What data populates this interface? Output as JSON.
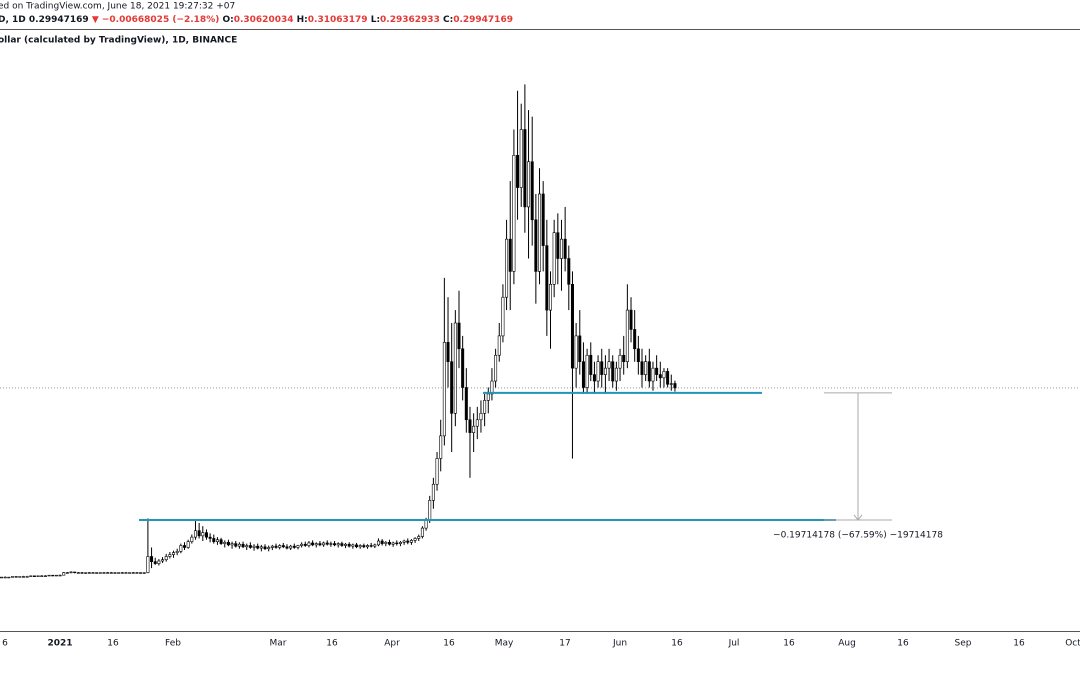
{
  "chart_data": {
    "type": "candlestick",
    "header": {
      "line1": "ed on TradingView.com, June 18, 2021 19:27:32 +07",
      "symbol": "D, 1D",
      "change": "▼ −0.00668025 (−2.18%)",
      "o_label": "O:",
      "h_label": "H:",
      "l_label": "L:",
      "c_label": "C:"
    },
    "subtitle": "ollar (calculated by TradingView), 1D, BINANCE",
    "candle_colors": {
      "up": "#ffffff",
      "down": "#000000",
      "border": "#000000"
    },
    "level_color": "#2196b6",
    "levels": [
      0.2917,
      0.0946
    ],
    "measure_label": "−0.19714178 (−67.59%) −19714178",
    "xtick_labels": [
      "6",
      "2021",
      "16",
      "Feb",
      "Mar",
      "16",
      "Apr",
      "16",
      "May",
      "17",
      "Jun",
      "16",
      "Jul",
      "16",
      "Aug",
      "16",
      "Sep",
      "16",
      "Oct"
    ],
    "ohlc": [
      [
        0.005,
        0.006,
        0.005,
        0.006
      ],
      [
        0.006,
        0.007,
        0.005,
        0.006
      ],
      [
        0.006,
        0.006,
        0.005,
        0.006
      ],
      [
        0.006,
        0.007,
        0.006,
        0.007
      ],
      [
        0.007,
        0.007,
        0.006,
        0.006
      ],
      [
        0.006,
        0.007,
        0.006,
        0.007
      ],
      [
        0.007,
        0.008,
        0.006,
        0.007
      ],
      [
        0.007,
        0.008,
        0.007,
        0.007
      ],
      [
        0.007,
        0.008,
        0.007,
        0.008
      ],
      [
        0.008,
        0.008,
        0.007,
        0.007
      ],
      [
        0.007,
        0.008,
        0.007,
        0.008
      ],
      [
        0.008,
        0.009,
        0.007,
        0.008
      ],
      [
        0.008,
        0.009,
        0.008,
        0.008
      ],
      [
        0.008,
        0.009,
        0.008,
        0.009
      ],
      [
        0.009,
        0.009,
        0.008,
        0.008
      ],
      [
        0.008,
        0.009,
        0.008,
        0.009
      ],
      [
        0.009,
        0.01,
        0.008,
        0.009
      ],
      [
        0.009,
        0.014,
        0.009,
        0.013
      ],
      [
        0.013,
        0.014,
        0.012,
        0.013
      ],
      [
        0.013,
        0.015,
        0.012,
        0.014
      ],
      [
        0.014,
        0.014,
        0.012,
        0.013
      ],
      [
        0.013,
        0.014,
        0.012,
        0.013
      ],
      [
        0.013,
        0.014,
        0.012,
        0.012
      ],
      [
        0.012,
        0.013,
        0.011,
        0.013
      ],
      [
        0.013,
        0.014,
        0.012,
        0.013
      ],
      [
        0.013,
        0.014,
        0.012,
        0.013
      ],
      [
        0.013,
        0.013,
        0.012,
        0.012
      ],
      [
        0.012,
        0.013,
        0.012,
        0.013
      ],
      [
        0.013,
        0.014,
        0.012,
        0.013
      ],
      [
        0.013,
        0.014,
        0.013,
        0.013
      ],
      [
        0.013,
        0.014,
        0.012,
        0.013
      ],
      [
        0.013,
        0.013,
        0.012,
        0.012
      ],
      [
        0.012,
        0.013,
        0.012,
        0.013
      ],
      [
        0.013,
        0.014,
        0.012,
        0.013
      ],
      [
        0.013,
        0.014,
        0.013,
        0.013
      ],
      [
        0.013,
        0.013,
        0.012,
        0.013
      ],
      [
        0.013,
        0.014,
        0.012,
        0.013
      ],
      [
        0.013,
        0.014,
        0.012,
        0.013
      ],
      [
        0.013,
        0.013,
        0.012,
        0.012
      ],
      [
        0.012,
        0.013,
        0.011,
        0.013
      ],
      [
        0.013,
        0.097,
        0.012,
        0.038
      ],
      [
        0.038,
        0.052,
        0.02,
        0.03
      ],
      [
        0.03,
        0.036,
        0.025,
        0.027
      ],
      [
        0.027,
        0.034,
        0.024,
        0.031
      ],
      [
        0.031,
        0.037,
        0.028,
        0.033
      ],
      [
        0.033,
        0.042,
        0.03,
        0.038
      ],
      [
        0.038,
        0.045,
        0.035,
        0.041
      ],
      [
        0.041,
        0.047,
        0.036,
        0.044
      ],
      [
        0.044,
        0.05,
        0.04,
        0.046
      ],
      [
        0.046,
        0.058,
        0.043,
        0.055
      ],
      [
        0.055,
        0.06,
        0.048,
        0.052
      ],
      [
        0.052,
        0.064,
        0.05,
        0.061
      ],
      [
        0.061,
        0.072,
        0.058,
        0.068
      ],
      [
        0.068,
        0.095,
        0.064,
        0.078
      ],
      [
        0.078,
        0.09,
        0.066,
        0.07
      ],
      [
        0.07,
        0.085,
        0.062,
        0.075
      ],
      [
        0.075,
        0.08,
        0.064,
        0.068
      ],
      [
        0.068,
        0.074,
        0.06,
        0.066
      ],
      [
        0.066,
        0.072,
        0.058,
        0.061
      ],
      [
        0.061,
        0.068,
        0.056,
        0.064
      ],
      [
        0.064,
        0.067,
        0.056,
        0.058
      ],
      [
        0.058,
        0.063,
        0.052,
        0.06
      ],
      [
        0.06,
        0.064,
        0.054,
        0.056
      ],
      [
        0.056,
        0.061,
        0.05,
        0.058
      ],
      [
        0.058,
        0.062,
        0.052,
        0.054
      ],
      [
        0.054,
        0.06,
        0.05,
        0.057
      ],
      [
        0.057,
        0.061,
        0.051,
        0.053
      ],
      [
        0.053,
        0.058,
        0.048,
        0.055
      ],
      [
        0.055,
        0.06,
        0.05,
        0.052
      ],
      [
        0.052,
        0.057,
        0.047,
        0.054
      ],
      [
        0.054,
        0.058,
        0.049,
        0.051
      ],
      [
        0.051,
        0.056,
        0.046,
        0.053
      ],
      [
        0.053,
        0.057,
        0.048,
        0.05
      ],
      [
        0.05,
        0.055,
        0.046,
        0.052
      ],
      [
        0.052,
        0.056,
        0.048,
        0.054
      ],
      [
        0.054,
        0.058,
        0.05,
        0.052
      ],
      [
        0.052,
        0.057,
        0.049,
        0.055
      ],
      [
        0.055,
        0.059,
        0.051,
        0.053
      ],
      [
        0.053,
        0.057,
        0.049,
        0.051
      ],
      [
        0.051,
        0.056,
        0.048,
        0.054
      ],
      [
        0.054,
        0.058,
        0.05,
        0.052
      ],
      [
        0.052,
        0.056,
        0.049,
        0.055
      ],
      [
        0.055,
        0.06,
        0.052,
        0.057
      ],
      [
        0.057,
        0.061,
        0.053,
        0.055
      ],
      [
        0.055,
        0.062,
        0.052,
        0.059
      ],
      [
        0.059,
        0.063,
        0.054,
        0.056
      ],
      [
        0.056,
        0.06,
        0.052,
        0.058
      ],
      [
        0.058,
        0.062,
        0.054,
        0.056
      ],
      [
        0.056,
        0.061,
        0.053,
        0.059
      ],
      [
        0.059,
        0.063,
        0.055,
        0.057
      ],
      [
        0.057,
        0.061,
        0.053,
        0.058
      ],
      [
        0.058,
        0.062,
        0.054,
        0.056
      ],
      [
        0.056,
        0.06,
        0.052,
        0.058
      ],
      [
        0.058,
        0.061,
        0.053,
        0.055
      ],
      [
        0.055,
        0.059,
        0.051,
        0.057
      ],
      [
        0.057,
        0.06,
        0.052,
        0.054
      ],
      [
        0.054,
        0.058,
        0.05,
        0.056
      ],
      [
        0.056,
        0.059,
        0.051,
        0.053
      ],
      [
        0.053,
        0.057,
        0.05,
        0.055
      ],
      [
        0.055,
        0.058,
        0.051,
        0.053
      ],
      [
        0.053,
        0.057,
        0.05,
        0.055
      ],
      [
        0.055,
        0.059,
        0.052,
        0.054
      ],
      [
        0.054,
        0.058,
        0.051,
        0.056
      ],
      [
        0.056,
        0.066,
        0.054,
        0.062
      ],
      [
        0.062,
        0.065,
        0.055,
        0.058
      ],
      [
        0.058,
        0.062,
        0.054,
        0.06
      ],
      [
        0.06,
        0.064,
        0.055,
        0.057
      ],
      [
        0.057,
        0.061,
        0.053,
        0.059
      ],
      [
        0.059,
        0.063,
        0.055,
        0.058
      ],
      [
        0.058,
        0.062,
        0.054,
        0.06
      ],
      [
        0.06,
        0.064,
        0.056,
        0.062
      ],
      [
        0.062,
        0.066,
        0.057,
        0.06
      ],
      [
        0.06,
        0.065,
        0.056,
        0.063
      ],
      [
        0.063,
        0.068,
        0.059,
        0.066
      ],
      [
        0.066,
        0.072,
        0.062,
        0.069
      ],
      [
        0.069,
        0.085,
        0.066,
        0.082
      ],
      [
        0.082,
        0.098,
        0.078,
        0.094
      ],
      [
        0.094,
        0.132,
        0.09,
        0.125
      ],
      [
        0.125,
        0.16,
        0.112,
        0.15
      ],
      [
        0.15,
        0.2,
        0.14,
        0.19
      ],
      [
        0.19,
        0.25,
        0.17,
        0.225
      ],
      [
        0.225,
        0.47,
        0.21,
        0.37
      ],
      [
        0.37,
        0.44,
        0.3,
        0.34
      ],
      [
        0.34,
        0.4,
        0.2,
        0.26
      ],
      [
        0.26,
        0.42,
        0.24,
        0.4
      ],
      [
        0.4,
        0.45,
        0.33,
        0.36
      ],
      [
        0.36,
        0.38,
        0.28,
        0.3
      ],
      [
        0.3,
        0.33,
        0.23,
        0.25
      ],
      [
        0.25,
        0.27,
        0.16,
        0.23
      ],
      [
        0.23,
        0.26,
        0.2,
        0.24
      ],
      [
        0.24,
        0.27,
        0.22,
        0.25
      ],
      [
        0.25,
        0.28,
        0.23,
        0.26
      ],
      [
        0.26,
        0.29,
        0.24,
        0.28
      ],
      [
        0.28,
        0.3,
        0.26,
        0.29
      ],
      [
        0.29,
        0.33,
        0.28,
        0.31
      ],
      [
        0.31,
        0.36,
        0.3,
        0.35
      ],
      [
        0.35,
        0.4,
        0.34,
        0.38
      ],
      [
        0.38,
        0.46,
        0.37,
        0.44
      ],
      [
        0.44,
        0.56,
        0.42,
        0.53
      ],
      [
        0.53,
        0.62,
        0.42,
        0.48
      ],
      [
        0.48,
        0.7,
        0.46,
        0.66
      ],
      [
        0.66,
        0.76,
        0.56,
        0.61
      ],
      [
        0.61,
        0.74,
        0.58,
        0.7
      ],
      [
        0.7,
        0.77,
        0.54,
        0.58
      ],
      [
        0.58,
        0.73,
        0.5,
        0.65
      ],
      [
        0.65,
        0.72,
        0.52,
        0.56
      ],
      [
        0.56,
        0.6,
        0.43,
        0.48
      ],
      [
        0.48,
        0.64,
        0.46,
        0.6
      ],
      [
        0.6,
        0.62,
        0.48,
        0.52
      ],
      [
        0.52,
        0.56,
        0.38,
        0.42
      ],
      [
        0.42,
        0.48,
        0.36,
        0.46
      ],
      [
        0.46,
        0.56,
        0.44,
        0.54
      ],
      [
        0.54,
        0.57,
        0.46,
        0.5
      ],
      [
        0.5,
        0.56,
        0.45,
        0.53
      ],
      [
        0.53,
        0.58,
        0.48,
        0.5
      ],
      [
        0.5,
        0.52,
        0.42,
        0.46
      ],
      [
        0.46,
        0.48,
        0.19,
        0.33
      ],
      [
        0.33,
        0.4,
        0.3,
        0.38
      ],
      [
        0.38,
        0.42,
        0.32,
        0.34
      ],
      [
        0.34,
        0.37,
        0.29,
        0.3
      ],
      [
        0.3,
        0.36,
        0.29,
        0.35
      ],
      [
        0.35,
        0.37,
        0.31,
        0.32
      ],
      [
        0.32,
        0.34,
        0.29,
        0.31
      ],
      [
        0.31,
        0.35,
        0.3,
        0.34
      ],
      [
        0.34,
        0.36,
        0.3,
        0.32
      ],
      [
        0.32,
        0.35,
        0.29,
        0.33
      ],
      [
        0.33,
        0.36,
        0.31,
        0.34
      ],
      [
        0.34,
        0.35,
        0.3,
        0.31
      ],
      [
        0.31,
        0.34,
        0.295,
        0.33
      ],
      [
        0.33,
        0.36,
        0.31,
        0.35
      ],
      [
        0.35,
        0.38,
        0.32,
        0.34
      ],
      [
        0.34,
        0.46,
        0.33,
        0.42
      ],
      [
        0.42,
        0.44,
        0.37,
        0.39
      ],
      [
        0.39,
        0.42,
        0.34,
        0.36
      ],
      [
        0.36,
        0.38,
        0.32,
        0.34
      ],
      [
        0.34,
        0.36,
        0.3,
        0.32
      ],
      [
        0.32,
        0.35,
        0.31,
        0.34
      ],
      [
        0.34,
        0.36,
        0.3,
        0.31
      ],
      [
        0.31,
        0.34,
        0.295,
        0.33
      ],
      [
        0.33,
        0.35,
        0.31,
        0.32
      ],
      [
        0.32,
        0.34,
        0.3,
        0.315
      ],
      [
        0.315,
        0.33,
        0.3,
        0.325
      ],
      [
        0.325,
        0.33,
        0.3,
        0.305
      ],
      [
        0.305,
        0.32,
        0.295,
        0.306
      ],
      [
        0.30620034,
        0.31063179,
        0.29362933,
        0.29947169
      ]
    ]
  }
}
